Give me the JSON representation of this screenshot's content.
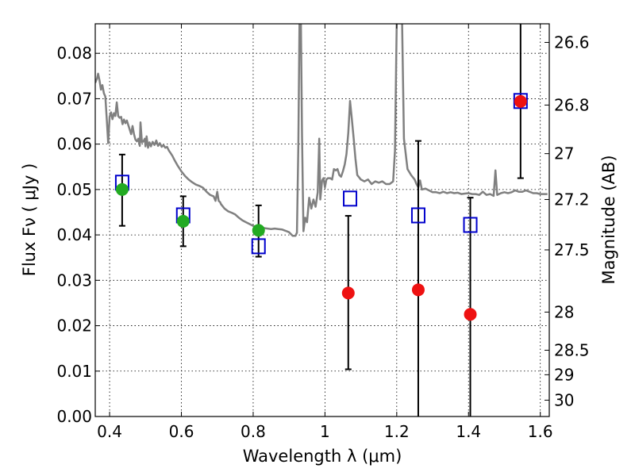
{
  "chart_data": {
    "type": "scatter",
    "xlabel": "Wavelength  λ (μm)",
    "ylabel": "Flux  Fν  ( μJy )",
    "ylabel_right": "Magnitude (AB)",
    "xlim": [
      0.36,
      1.625
    ],
    "ylim": [
      0.0,
      0.0865
    ],
    "grid": true,
    "x_ticks": [
      0.4,
      0.6,
      0.8,
      1.0,
      1.2,
      1.4,
      1.6
    ],
    "x_tick_labels": [
      "0.4",
      "0.6",
      "0.8",
      "1",
      "1.2",
      "1.4",
      "1.6"
    ],
    "y_ticks": [
      0.0,
      0.01,
      0.02,
      0.03,
      0.04,
      0.05,
      0.06,
      0.07,
      0.08
    ],
    "y_tick_labels": [
      "0.00",
      "0.01",
      "0.02",
      "0.03",
      "0.04",
      "0.05",
      "0.06",
      "0.07",
      "0.08"
    ],
    "right_ticks": [
      {
        "flux": 0.0824,
        "label": "26.6"
      },
      {
        "flux": 0.0686,
        "label": "26.8"
      },
      {
        "flux": 0.0579,
        "label": "27"
      },
      {
        "flux": 0.0478,
        "label": "27.2"
      },
      {
        "flux": 0.0367,
        "label": "27.5"
      },
      {
        "flux": 0.023,
        "label": "28"
      },
      {
        "flux": 0.0146,
        "label": "28.5"
      },
      {
        "flux": 0.0092,
        "label": "29"
      },
      {
        "flux": 0.0036,
        "label": "30"
      }
    ],
    "series": [
      {
        "marker": "line",
        "color": "#808080",
        "points": [
          [
            0.36,
            0.0735
          ],
          [
            0.365,
            0.0745
          ],
          [
            0.368,
            0.0755
          ],
          [
            0.372,
            0.074
          ],
          [
            0.376,
            0.072
          ],
          [
            0.38,
            0.073
          ],
          [
            0.384,
            0.0712
          ],
          [
            0.388,
            0.0705
          ],
          [
            0.392,
            0.0655
          ],
          [
            0.396,
            0.0602
          ],
          [
            0.4,
            0.066
          ],
          [
            0.404,
            0.067
          ],
          [
            0.408,
            0.0655
          ],
          [
            0.412,
            0.0668
          ],
          [
            0.416,
            0.0662
          ],
          [
            0.42,
            0.0692
          ],
          [
            0.424,
            0.0662
          ],
          [
            0.428,
            0.0658
          ],
          [
            0.432,
            0.066
          ],
          [
            0.436,
            0.0644
          ],
          [
            0.44,
            0.0654
          ],
          [
            0.444,
            0.0646
          ],
          [
            0.448,
            0.0652
          ],
          [
            0.452,
            0.0642
          ],
          [
            0.456,
            0.0632
          ],
          [
            0.46,
            0.0622
          ],
          [
            0.464,
            0.064
          ],
          [
            0.468,
            0.0622
          ],
          [
            0.472,
            0.061
          ],
          [
            0.476,
            0.0606
          ],
          [
            0.48,
            0.0612
          ],
          [
            0.484,
            0.0596
          ],
          [
            0.486,
            0.0648
          ],
          [
            0.49,
            0.0604
          ],
          [
            0.494,
            0.0606
          ],
          [
            0.498,
            0.0612
          ],
          [
            0.5,
            0.0595
          ],
          [
            0.503,
            0.0617
          ],
          [
            0.507,
            0.0592
          ],
          [
            0.511,
            0.0604
          ],
          [
            0.515,
            0.0595
          ],
          [
            0.52,
            0.0605
          ],
          [
            0.525,
            0.0598
          ],
          [
            0.53,
            0.0608
          ],
          [
            0.535,
            0.0596
          ],
          [
            0.54,
            0.0602
          ],
          [
            0.545,
            0.0594
          ],
          [
            0.55,
            0.0598
          ],
          [
            0.555,
            0.0592
          ],
          [
            0.56,
            0.0594
          ],
          [
            0.565,
            0.0586
          ],
          [
            0.57,
            0.058
          ],
          [
            0.575,
            0.0574
          ],
          [
            0.58,
            0.0566
          ],
          [
            0.59,
            0.0552
          ],
          [
            0.6,
            0.054
          ],
          [
            0.61,
            0.053
          ],
          [
            0.62,
            0.0522
          ],
          [
            0.63,
            0.0516
          ],
          [
            0.64,
            0.0511
          ],
          [
            0.65,
            0.0508
          ],
          [
            0.66,
            0.0504
          ],
          [
            0.67,
            0.0495
          ],
          [
            0.68,
            0.0488
          ],
          [
            0.69,
            0.0485
          ],
          [
            0.695,
            0.0475
          ],
          [
            0.7,
            0.0495
          ],
          [
            0.704,
            0.0475
          ],
          [
            0.708,
            0.0472
          ],
          [
            0.71,
            0.0468
          ],
          [
            0.72,
            0.0458
          ],
          [
            0.73,
            0.0452
          ],
          [
            0.74,
            0.0449
          ],
          [
            0.75,
            0.0445
          ],
          [
            0.76,
            0.0438
          ],
          [
            0.77,
            0.0432
          ],
          [
            0.78,
            0.0428
          ],
          [
            0.79,
            0.0424
          ],
          [
            0.8,
            0.042
          ],
          [
            0.81,
            0.0417
          ],
          [
            0.82,
            0.0416
          ],
          [
            0.83,
            0.0415
          ],
          [
            0.84,
            0.0414
          ],
          [
            0.85,
            0.0413
          ],
          [
            0.86,
            0.0414
          ],
          [
            0.87,
            0.0413
          ],
          [
            0.88,
            0.0412
          ],
          [
            0.89,
            0.0409
          ],
          [
            0.9,
            0.0406
          ],
          [
            0.91,
            0.0398
          ],
          [
            0.918,
            0.0398
          ],
          [
            0.922,
            0.0405
          ],
          [
            0.926,
            0.06
          ],
          [
            0.929,
            0.0866
          ],
          [
            0.933,
            0.0866
          ],
          [
            0.936,
            0.062
          ],
          [
            0.94,
            0.0408
          ],
          [
            0.945,
            0.0438
          ],
          [
            0.95,
            0.0428
          ],
          [
            0.956,
            0.0482
          ],
          [
            0.962,
            0.0458
          ],
          [
            0.968,
            0.0478
          ],
          [
            0.974,
            0.0462
          ],
          [
            0.98,
            0.0494
          ],
          [
            0.984,
            0.0612
          ],
          [
            0.987,
            0.0478
          ],
          [
            0.992,
            0.052
          ],
          [
            0.996,
            0.0525
          ],
          [
            1.0,
            0.0505
          ],
          [
            1.004,
            0.0522
          ],
          [
            1.008,
            0.0525
          ],
          [
            1.015,
            0.0525
          ],
          [
            1.02,
            0.0522
          ],
          [
            1.025,
            0.0545
          ],
          [
            1.03,
            0.0542
          ],
          [
            1.035,
            0.0545
          ],
          [
            1.04,
            0.0532
          ],
          [
            1.045,
            0.0528
          ],
          [
            1.05,
            0.054
          ],
          [
            1.055,
            0.0555
          ],
          [
            1.06,
            0.0578
          ],
          [
            1.065,
            0.0625
          ],
          [
            1.07,
            0.0695
          ],
          [
            1.075,
            0.0655
          ],
          [
            1.08,
            0.0612
          ],
          [
            1.085,
            0.0568
          ],
          [
            1.09,
            0.0532
          ],
          [
            1.1,
            0.0522
          ],
          [
            1.11,
            0.0518
          ],
          [
            1.12,
            0.0522
          ],
          [
            1.13,
            0.0512
          ],
          [
            1.14,
            0.0518
          ],
          [
            1.15,
            0.0515
          ],
          [
            1.16,
            0.0518
          ],
          [
            1.17,
            0.0512
          ],
          [
            1.18,
            0.0512
          ],
          [
            1.19,
            0.0518
          ],
          [
            1.195,
            0.0585
          ],
          [
            1.2,
            0.0866
          ],
          [
            1.215,
            0.0866
          ],
          [
            1.22,
            0.0612
          ],
          [
            1.23,
            0.0545
          ],
          [
            1.24,
            0.0532
          ],
          [
            1.25,
            0.0522
          ],
          [
            1.255,
            0.0512
          ],
          [
            1.26,
            0.0505
          ],
          [
            1.265,
            0.052
          ],
          [
            1.27,
            0.05
          ],
          [
            1.28,
            0.0502
          ],
          [
            1.29,
            0.0498
          ],
          [
            1.3,
            0.0494
          ],
          [
            1.31,
            0.0494
          ],
          [
            1.32,
            0.0492
          ],
          [
            1.33,
            0.0495
          ],
          [
            1.34,
            0.0492
          ],
          [
            1.35,
            0.0494
          ],
          [
            1.36,
            0.0492
          ],
          [
            1.37,
            0.0493
          ],
          [
            1.38,
            0.049
          ],
          [
            1.39,
            0.0491
          ],
          [
            1.4,
            0.0492
          ],
          [
            1.41,
            0.049
          ],
          [
            1.42,
            0.049
          ],
          [
            1.43,
            0.0488
          ],
          [
            1.44,
            0.0495
          ],
          [
            1.45,
            0.0488
          ],
          [
            1.46,
            0.049
          ],
          [
            1.47,
            0.0486
          ],
          [
            1.475,
            0.0542
          ],
          [
            1.48,
            0.0488
          ],
          [
            1.49,
            0.0492
          ],
          [
            1.5,
            0.0494
          ],
          [
            1.51,
            0.0492
          ],
          [
            1.52,
            0.0494
          ],
          [
            1.53,
            0.0498
          ],
          [
            1.54,
            0.0495
          ],
          [
            1.55,
            0.0495
          ],
          [
            1.56,
            0.0498
          ],
          [
            1.57,
            0.0495
          ],
          [
            1.58,
            0.0492
          ],
          [
            1.59,
            0.0492
          ],
          [
            1.6,
            0.049
          ],
          [
            1.61,
            0.049
          ],
          [
            1.62,
            0.049
          ]
        ]
      },
      {
        "marker": "square",
        "color": "#0000cc",
        "points": [
          [
            0.435,
            0.0515
          ],
          [
            0.605,
            0.0443
          ],
          [
            0.815,
            0.0375
          ],
          [
            1.07,
            0.048
          ],
          [
            1.26,
            0.0443
          ],
          [
            1.405,
            0.0422
          ],
          [
            1.545,
            0.0695
          ]
        ]
      },
      {
        "marker": "circle",
        "color": "#22aa22",
        "points": [
          [
            0.435,
            0.05
          ],
          [
            0.605,
            0.043
          ],
          [
            0.815,
            0.041
          ]
        ],
        "errors": [
          [
            0.042,
            0.0577
          ],
          [
            0.0375,
            0.0485
          ],
          [
            0.0352,
            0.0465
          ]
        ]
      },
      {
        "marker": "circle",
        "color": "#ee1111",
        "points": [
          [
            1.065,
            0.0272
          ],
          [
            1.26,
            0.0279
          ],
          [
            1.405,
            0.0225
          ],
          [
            1.545,
            0.0694
          ]
        ],
        "errors": [
          [
            0.0104,
            0.0442
          ],
          [
            0.0,
            0.0607
          ],
          [
            0.0,
            0.0482
          ],
          [
            0.0525,
            0.0866
          ]
        ]
      }
    ]
  }
}
